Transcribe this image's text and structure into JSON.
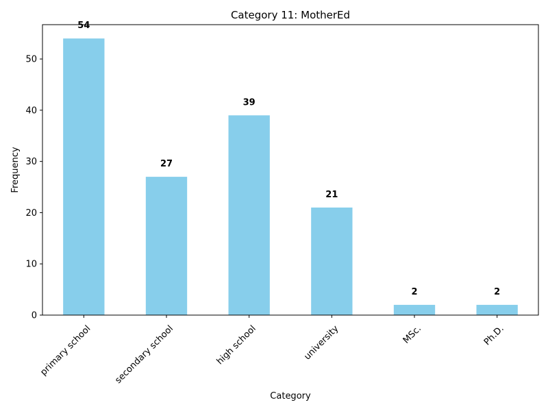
{
  "chart_data": {
    "type": "bar",
    "title": "Category 11: MotherEd",
    "xlabel": "Category",
    "ylabel": "Frequency",
    "categories": [
      "primary school",
      "secondary school",
      "high school",
      "university",
      "MSc.",
      "Ph.D."
    ],
    "values": [
      54,
      27,
      39,
      21,
      2,
      2
    ],
    "data_labels": [
      "54",
      "27",
      "39",
      "21",
      "2",
      "2"
    ],
    "ylim": [
      0,
      56.7
    ],
    "yticks": [
      0,
      10,
      20,
      30,
      40,
      50
    ],
    "bar_color": "#87CEEB",
    "grid": false
  }
}
